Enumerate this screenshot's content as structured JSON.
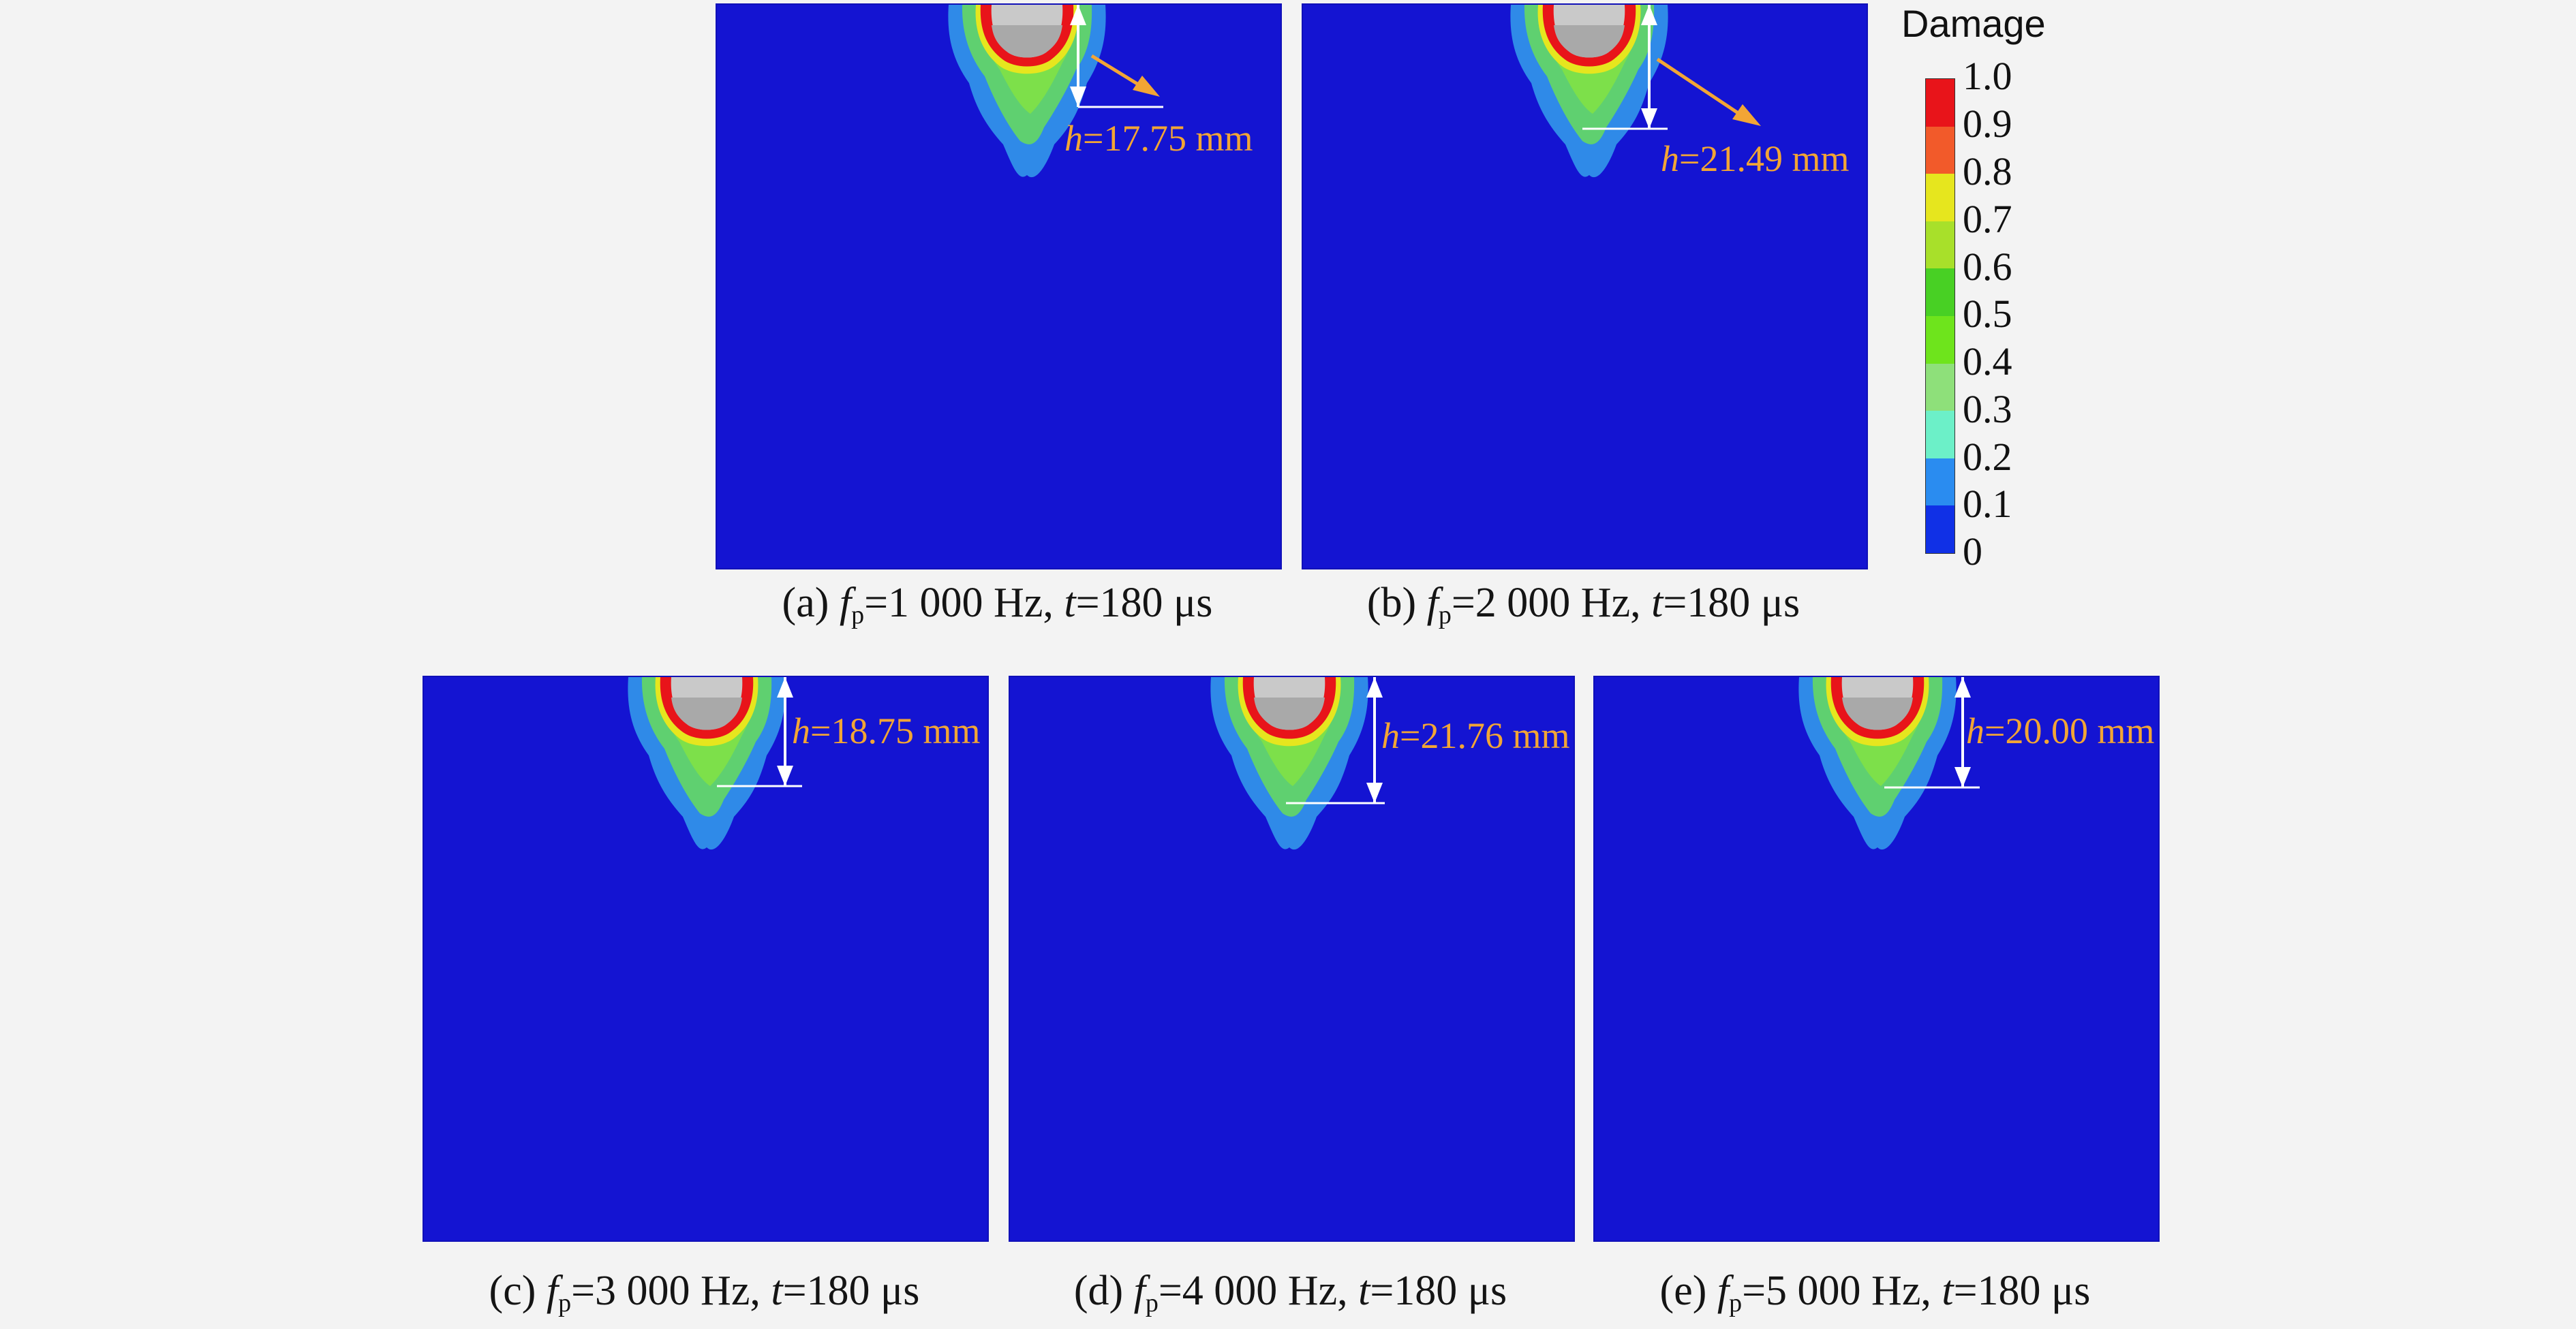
{
  "legend": {
    "title": "Damage",
    "ticks": [
      "1.0",
      "0.9",
      "0.8",
      "0.7",
      "0.6",
      "0.5",
      "0.4",
      "0.3",
      "0.2",
      "0.1",
      "0"
    ],
    "colors": [
      "#e8141a",
      "#f25a2a",
      "#e6e61e",
      "#a8e02a",
      "#48d024",
      "#6ee41c",
      "#8ee07a",
      "#6cf0c8",
      "#2a8cf0",
      "#1030e6"
    ]
  },
  "panels": [
    {
      "id": "a",
      "letter": "(a) ",
      "fp_symbol": "f",
      "fp_sub": "p",
      "fp_value": "=1 000 Hz, ",
      "t_symbol": "t",
      "t_value": "=180 μs",
      "h_symbol": "h",
      "h_value": "=17.75 mm",
      "depth_mm": 17.75
    },
    {
      "id": "b",
      "letter": "(b) ",
      "fp_symbol": "f",
      "fp_sub": "p",
      "fp_value": "=2 000 Hz, ",
      "t_symbol": "t",
      "t_value": "=180 μs",
      "h_symbol": "h",
      "h_value": "=21.49 mm",
      "depth_mm": 21.49
    },
    {
      "id": "c",
      "letter": "(c) ",
      "fp_symbol": "f",
      "fp_sub": "p",
      "fp_value": "=3 000 Hz, ",
      "t_symbol": "t",
      "t_value": "=180 μs",
      "h_symbol": "h",
      "h_value": "=18.75 mm",
      "depth_mm": 18.75
    },
    {
      "id": "d",
      "letter": "(d) ",
      "fp_symbol": "f",
      "fp_sub": "p",
      "fp_value": "=4 000 Hz, ",
      "t_symbol": "t",
      "t_value": "=180 μs",
      "h_symbol": "h",
      "h_value": "=21.76 mm",
      "depth_mm": 21.76
    },
    {
      "id": "e",
      "letter": "(e) ",
      "fp_symbol": "f",
      "fp_sub": "p",
      "fp_value": "=5 000 Hz, ",
      "t_symbol": "t",
      "t_value": "=180 μs",
      "h_symbol": "h",
      "h_value": "=20.00 mm",
      "depth_mm": 20.0
    }
  ]
}
